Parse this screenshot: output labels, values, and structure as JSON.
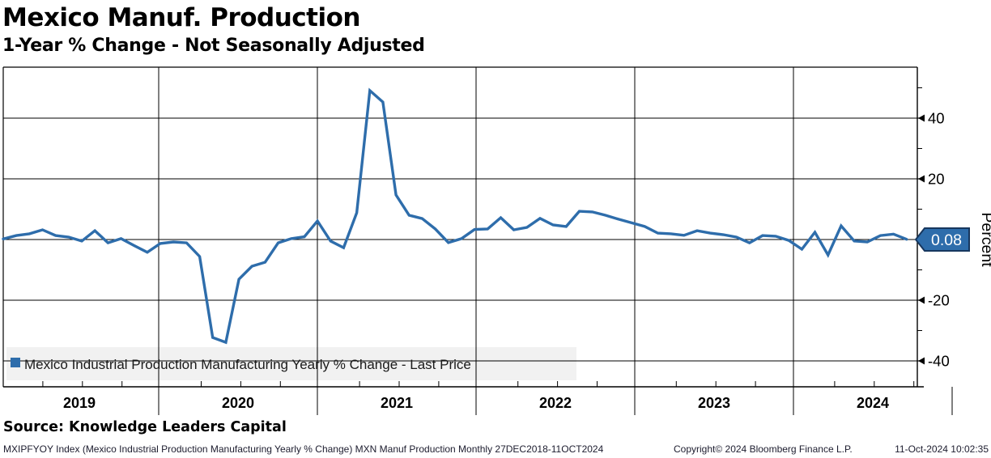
{
  "header": {
    "title": "Mexico Manuf. Production",
    "subtitle": "1-Year % Change - Not Seasonally Adjusted"
  },
  "source": {
    "text": "Source: Knowledge Leaders Capital"
  },
  "footer": {
    "security_info": "MXIPFYOY Index (Mexico Industrial Production Manufacturing Yearly % Change) MXN Manuf Production  Monthly 27DEC2018-11OCT2024",
    "copyright": "Copyright© 2024 Bloomberg Finance L.P.",
    "timestamp": "11-Oct-2024 10:02:35"
  },
  "chart_data": {
    "type": "line",
    "title": "Mexico Manuf. Production",
    "subtitle": "1-Year % Change - Not Seasonally Adjusted",
    "ylabel": "Percent",
    "ylim": [
      -48.5,
      56.8
    ],
    "yticks_major": [
      40,
      20,
      0,
      -20,
      -40
    ],
    "yticks_minor": [
      50,
      30,
      10,
      -10,
      -30
    ],
    "grid": true,
    "x_year_labels": [
      "2019",
      "2020",
      "2021",
      "2022",
      "2023",
      "2024"
    ],
    "x_range": "27DEC2018-11OCT2024",
    "frequency": "monthly",
    "legend_position": "bottom-left",
    "last_price": 0.08,
    "last_price_label": "0.08",
    "series": [
      {
        "name": "Mexico Industrial Production Manufacturing Yearly % Change - Last Price",
        "color": "#2e6dab",
        "start": "DEC2018",
        "values": [
          0.2,
          1.3,
          1.9,
          3.2,
          1.3,
          0.8,
          -0.5,
          2.9,
          -1.1,
          0.3,
          -2.0,
          -4.2,
          -1.3,
          -0.8,
          -1.1,
          -5.6,
          -32.3,
          -33.9,
          -13.1,
          -8.8,
          -7.5,
          -1.1,
          0.3,
          0.9,
          6.1,
          -0.5,
          -2.7,
          8.8,
          49.1,
          45.3,
          14.7,
          8.0,
          6.9,
          3.5,
          -1.0,
          0.3,
          3.3,
          3.5,
          7.2,
          3.2,
          4.0,
          7.0,
          4.8,
          4.3,
          9.3,
          9.1,
          8.0,
          6.7,
          5.5,
          4.3,
          2.1,
          1.9,
          1.4,
          2.9,
          2.1,
          1.6,
          0.8,
          -1.1,
          1.3,
          1.1,
          -0.3,
          -3.2,
          2.4,
          -5.1,
          4.5,
          -0.5,
          -0.8,
          1.3,
          1.8,
          0.08
        ]
      }
    ]
  },
  "colors": {
    "line": "#2e6dab",
    "badge_fill": "#2e6dab",
    "badge_border": "#17375e",
    "badge_text": "#ffffff",
    "legend_bg": "#f1f1f1",
    "grid": "#000000",
    "text": "#000000"
  }
}
